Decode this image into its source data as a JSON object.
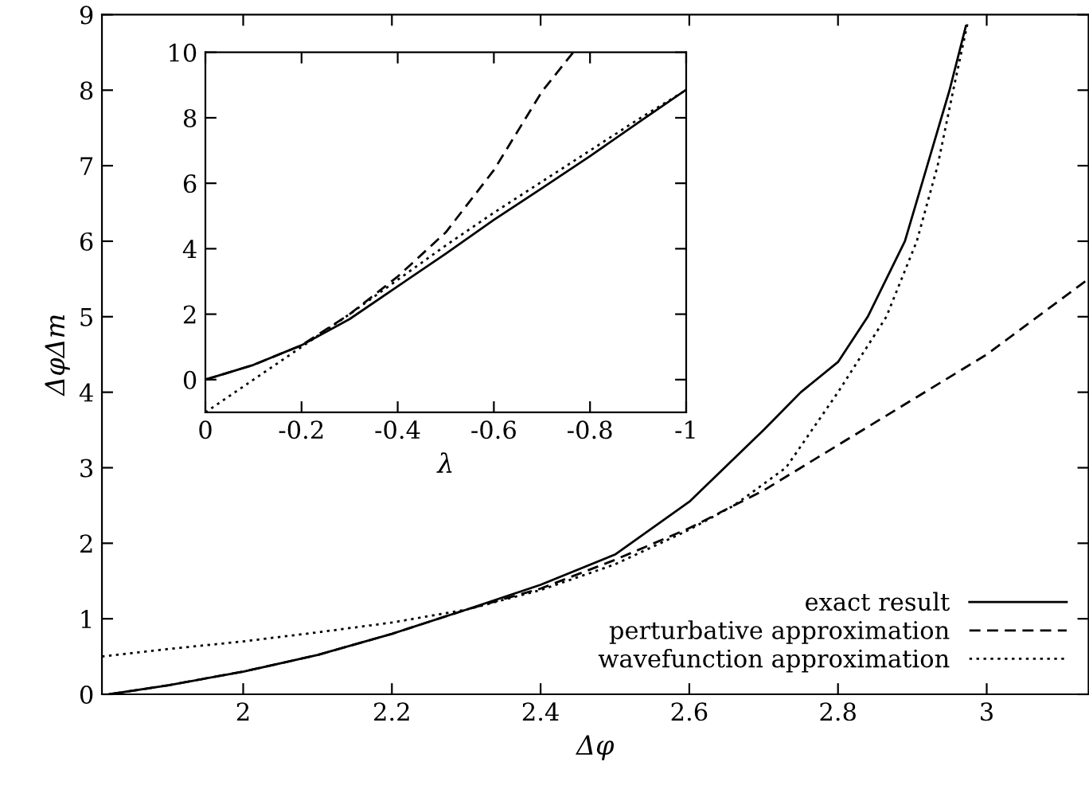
{
  "chart_data": [
    {
      "type": "line",
      "xlabel": "Δφ",
      "ylabel": "ΔφΔm",
      "xlim": [
        1.81,
        3.137
      ],
      "ylim": [
        0,
        9
      ],
      "xticks": [
        2,
        2.2,
        2.4,
        2.6,
        2.8,
        3
      ],
      "yticks": [
        0,
        1,
        2,
        3,
        4,
        5,
        6,
        7,
        8,
        9
      ],
      "grid": false,
      "legend": "bottom right",
      "series": [
        {
          "name": "exact result",
          "color": "#000000",
          "line_style": "solid",
          "x": [
            1.82,
            1.9,
            2.0,
            2.1,
            2.2,
            2.3,
            2.4,
            2.5,
            2.6,
            2.7,
            2.75,
            2.8,
            2.84,
            2.89,
            2.92,
            2.95,
            2.972
          ],
          "values": [
            0,
            0.12,
            0.3,
            0.52,
            0.8,
            1.12,
            1.45,
            1.85,
            2.55,
            3.5,
            4.0,
            4.4,
            5,
            6,
            7,
            8,
            8.85
          ]
        },
        {
          "name": "perturbative approximation",
          "color": "#000000",
          "line_style": "dashed",
          "x": [
            1.82,
            1.9,
            2.0,
            2.1,
            2.2,
            2.3,
            2.4,
            2.5,
            2.6,
            2.7,
            2.8,
            2.9,
            3.0,
            3.137
          ],
          "values": [
            0,
            0.12,
            0.3,
            0.52,
            0.8,
            1.12,
            1.4,
            1.78,
            2.2,
            2.7,
            3.3,
            3.9,
            4.5,
            5.5
          ]
        },
        {
          "name": "wavefunction approximation",
          "color": "#000000",
          "line_style": "dotted",
          "x": [
            1.81,
            1.9,
            2.0,
            2.1,
            2.2,
            2.3,
            2.4,
            2.5,
            2.6,
            2.66,
            2.73,
            2.8,
            2.865,
            2.906,
            2.934,
            2.955,
            2.975
          ],
          "values": [
            0.5,
            0.6,
            0.7,
            0.82,
            0.95,
            1.12,
            1.38,
            1.72,
            2.18,
            2.5,
            3,
            4,
            5,
            6,
            7,
            8,
            8.92
          ]
        }
      ]
    },
    {
      "type": "line",
      "xlabel": "λ",
      "xlim": [
        0,
        -1
      ],
      "ylim": [
        -1,
        10
      ],
      "xticks": [
        0,
        -0.2,
        -0.4,
        -0.6,
        -0.8,
        -1
      ],
      "yticks": [
        0,
        2,
        4,
        6,
        8,
        10
      ],
      "grid": false,
      "series": [
        {
          "color": "#000000",
          "line_style": "solid",
          "x": [
            0,
            -0.1,
            -0.2,
            -0.3,
            -0.4,
            -0.5,
            -0.6,
            -0.7,
            -0.8,
            -0.9,
            -1
          ],
          "values": [
            0,
            0.45,
            1.05,
            1.85,
            2.85,
            3.85,
            4.88,
            5.85,
            6.83,
            7.85,
            8.86
          ]
        },
        {
          "color": "#000000",
          "line_style": "dashed",
          "x": [
            0,
            -0.1,
            -0.2,
            -0.3,
            -0.4,
            -0.5,
            -0.6,
            -0.7,
            -0.765
          ],
          "values": [
            0,
            0.45,
            1.05,
            2.0,
            3.15,
            4.5,
            6.4,
            8.8,
            10
          ]
        },
        {
          "color": "#000000",
          "line_style": "dotted",
          "x": [
            0,
            -0.1,
            -0.2,
            -0.3,
            -0.4,
            -0.5,
            -0.6,
            -0.7,
            -0.8,
            -0.9,
            -1
          ],
          "values": [
            -1,
            0.0,
            1.0,
            2.0,
            3.05,
            4.1,
            5.1,
            6.05,
            7.0,
            7.95,
            8.85
          ]
        }
      ]
    }
  ]
}
